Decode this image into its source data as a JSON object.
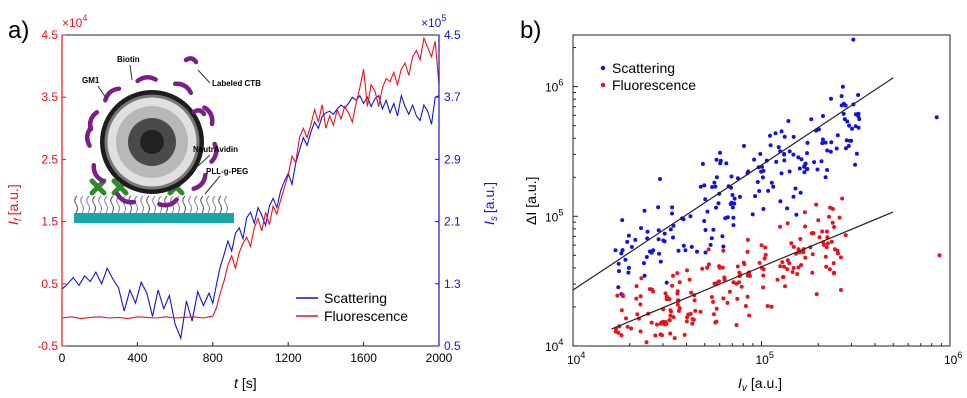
{
  "chart_data": [
    {
      "type": "line",
      "panel_label": "a)",
      "xlabel": "t",
      "xunit": "[s]",
      "xlim": [
        0,
        2000
      ],
      "xticks": [
        0,
        400,
        800,
        1200,
        1600,
        2000
      ],
      "left_axis": {
        "label": "I",
        "label_sub": "f",
        "unit": "[a.u.]",
        "multiplier": "×10",
        "multiplier_exp": "4",
        "ylim": [
          -0.5,
          4.5
        ],
        "ticks": [
          "-0.5",
          "0.5",
          "1.5",
          "2.5",
          "3.5",
          "4.5"
        ],
        "color": "#e8141c"
      },
      "right_axis": {
        "label": "I",
        "label_sub": "s",
        "unit": "[a.u.]",
        "multiplier": "×10",
        "multiplier_exp": "5",
        "ylim": [
          0.5,
          4.5
        ],
        "ticks": [
          "0.5",
          "1.3",
          "2.1",
          "2.9",
          "3.7",
          "4.5"
        ],
        "color": "#1414d8"
      },
      "legend": [
        "Scattering",
        "Fluorescence"
      ],
      "inset_labels": [
        "GM1",
        "Biotin",
        "Labeled CTB",
        "NeutrAvidin",
        "PLL-g-PEG"
      ],
      "series": [
        {
          "name": "Scattering",
          "axis": "right",
          "color": "#1414d8",
          "x": [
            0,
            30,
            60,
            90,
            120,
            150,
            180,
            210,
            240,
            270,
            300,
            330,
            360,
            390,
            420,
            450,
            480,
            510,
            540,
            570,
            600,
            630,
            660,
            690,
            720,
            750,
            780,
            800,
            820,
            840,
            860,
            880,
            900,
            920,
            940,
            960,
            980,
            1000,
            1020,
            1040,
            1060,
            1080,
            1100,
            1120,
            1140,
            1160,
            1180,
            1200,
            1220,
            1240,
            1260,
            1280,
            1300,
            1320,
            1340,
            1360,
            1380,
            1400,
            1420,
            1440,
            1460,
            1480,
            1500,
            1520,
            1540,
            1560,
            1580,
            1600,
            1620,
            1640,
            1660,
            1680,
            1700,
            1720,
            1740,
            1760,
            1780,
            1800,
            1820,
            1840,
            1860,
            1880,
            1900,
            1920,
            1940,
            1960,
            1980,
            2000
          ],
          "values": [
            1.23,
            1.3,
            1.38,
            1.28,
            1.4,
            1.33,
            1.45,
            1.3,
            1.5,
            1.36,
            1.25,
            0.95,
            1.22,
            1.05,
            1.32,
            1.18,
            0.88,
            1.22,
            0.98,
            1.15,
            0.78,
            0.6,
            1.08,
            0.82,
            1.2,
            1.02,
            1.18,
            1.05,
            1.3,
            1.52,
            1.68,
            1.85,
            1.72,
            1.95,
            2.02,
            1.88,
            2.15,
            2.22,
            2.08,
            2.28,
            2.18,
            2.05,
            2.3,
            2.4,
            2.28,
            2.5,
            2.62,
            2.72,
            2.58,
            2.85,
            3.02,
            3.18,
            3.08,
            3.25,
            3.38,
            3.3,
            3.45,
            3.5,
            3.52,
            3.48,
            3.55,
            3.6,
            3.56,
            3.62,
            3.7,
            3.66,
            3.72,
            3.62,
            3.7,
            3.58,
            3.68,
            3.72,
            3.55,
            3.66,
            3.5,
            3.62,
            3.46,
            3.72,
            3.58,
            3.48,
            3.6,
            3.46,
            3.4,
            3.6,
            3.52,
            3.35,
            3.7,
            3.72
          ]
        },
        {
          "name": "Fluorescence",
          "axis": "left",
          "color": "#e8141c",
          "x": [
            0,
            50,
            100,
            150,
            200,
            250,
            300,
            350,
            400,
            450,
            500,
            550,
            600,
            650,
            700,
            750,
            800,
            820,
            840,
            860,
            880,
            900,
            920,
            940,
            960,
            980,
            1000,
            1020,
            1040,
            1060,
            1080,
            1100,
            1120,
            1140,
            1160,
            1180,
            1200,
            1220,
            1240,
            1260,
            1280,
            1300,
            1320,
            1340,
            1360,
            1380,
            1400,
            1420,
            1440,
            1460,
            1480,
            1500,
            1520,
            1540,
            1560,
            1580,
            1600,
            1620,
            1640,
            1660,
            1680,
            1700,
            1720,
            1740,
            1760,
            1780,
            1800,
            1820,
            1840,
            1860,
            1880,
            1900,
            1920,
            1940,
            1960,
            1980,
            2000
          ],
          "values": [
            -0.05,
            -0.03,
            -0.06,
            -0.04,
            -0.03,
            -0.05,
            -0.04,
            -0.06,
            -0.03,
            -0.04,
            -0.05,
            -0.03,
            -0.05,
            -0.04,
            -0.03,
            -0.05,
            -0.02,
            0.12,
            0.35,
            0.55,
            0.8,
            0.95,
            0.75,
            1.0,
            1.15,
            1.25,
            1.1,
            1.4,
            1.55,
            1.35,
            1.65,
            1.45,
            1.75,
            1.62,
            1.85,
            2.05,
            2.25,
            2.55,
            2.45,
            2.85,
            3.0,
            2.85,
            3.05,
            3.3,
            3.1,
            3.38,
            3.0,
            3.2,
            3.05,
            3.3,
            3.15,
            3.35,
            3.25,
            3.1,
            3.4,
            3.65,
            3.95,
            3.35,
            3.7,
            3.6,
            3.35,
            3.65,
            3.8,
            3.75,
            3.9,
            3.7,
            3.95,
            4.05,
            3.85,
            4.15,
            4.25,
            4.1,
            4.45,
            4.3,
            4.15,
            4.4,
            3.7
          ]
        }
      ]
    },
    {
      "type": "scatter",
      "panel_label": "b)",
      "xlabel": "I",
      "xlabel_sub": "v",
      "xunit": "[a.u.]",
      "ylabel": "ΔI",
      "yunit": "[a.u.]",
      "xscale": "log",
      "yscale": "log",
      "xlim": [
        10000,
        1000000
      ],
      "ylim": [
        10000,
        2500000
      ],
      "xtick_labels": [
        "10",
        "10",
        "10"
      ],
      "xtick_exps": [
        "4",
        "5",
        "6"
      ],
      "ytick_labels": [
        "10",
        "10",
        "10"
      ],
      "ytick_exps": [
        "4",
        "5",
        "6"
      ],
      "legend": [
        "Scattering",
        "Fluorescence"
      ],
      "legend_placement": "top-left",
      "series": [
        {
          "name": "Scattering",
          "color": "#1414d8",
          "generator": {
            "n": 185,
            "seed": 7,
            "xmin_log": 4.22,
            "xmax_log": 5.52,
            "a": 0.87,
            "b": 0.95,
            "scatter": 0.17
          },
          "extra_points": [
            [
              850000,
              580000
            ]
          ],
          "fit": {
            "x": [
              10000,
              500000
            ],
            "y": [
              27000,
              1170000
            ]
          }
        },
        {
          "name": "Fluorescence",
          "color": "#e8141c",
          "generator": {
            "n": 210,
            "seed": 13,
            "xmin_log": 4.22,
            "xmax_log": 5.45,
            "a": 0.6,
            "b": 1.56,
            "scatter": 0.16
          },
          "extra_points": [
            [
              880000,
              50000
            ]
          ],
          "fit": {
            "x": [
              16000,
              500000
            ],
            "y": [
              13500,
              108000
            ]
          }
        }
      ]
    }
  ]
}
